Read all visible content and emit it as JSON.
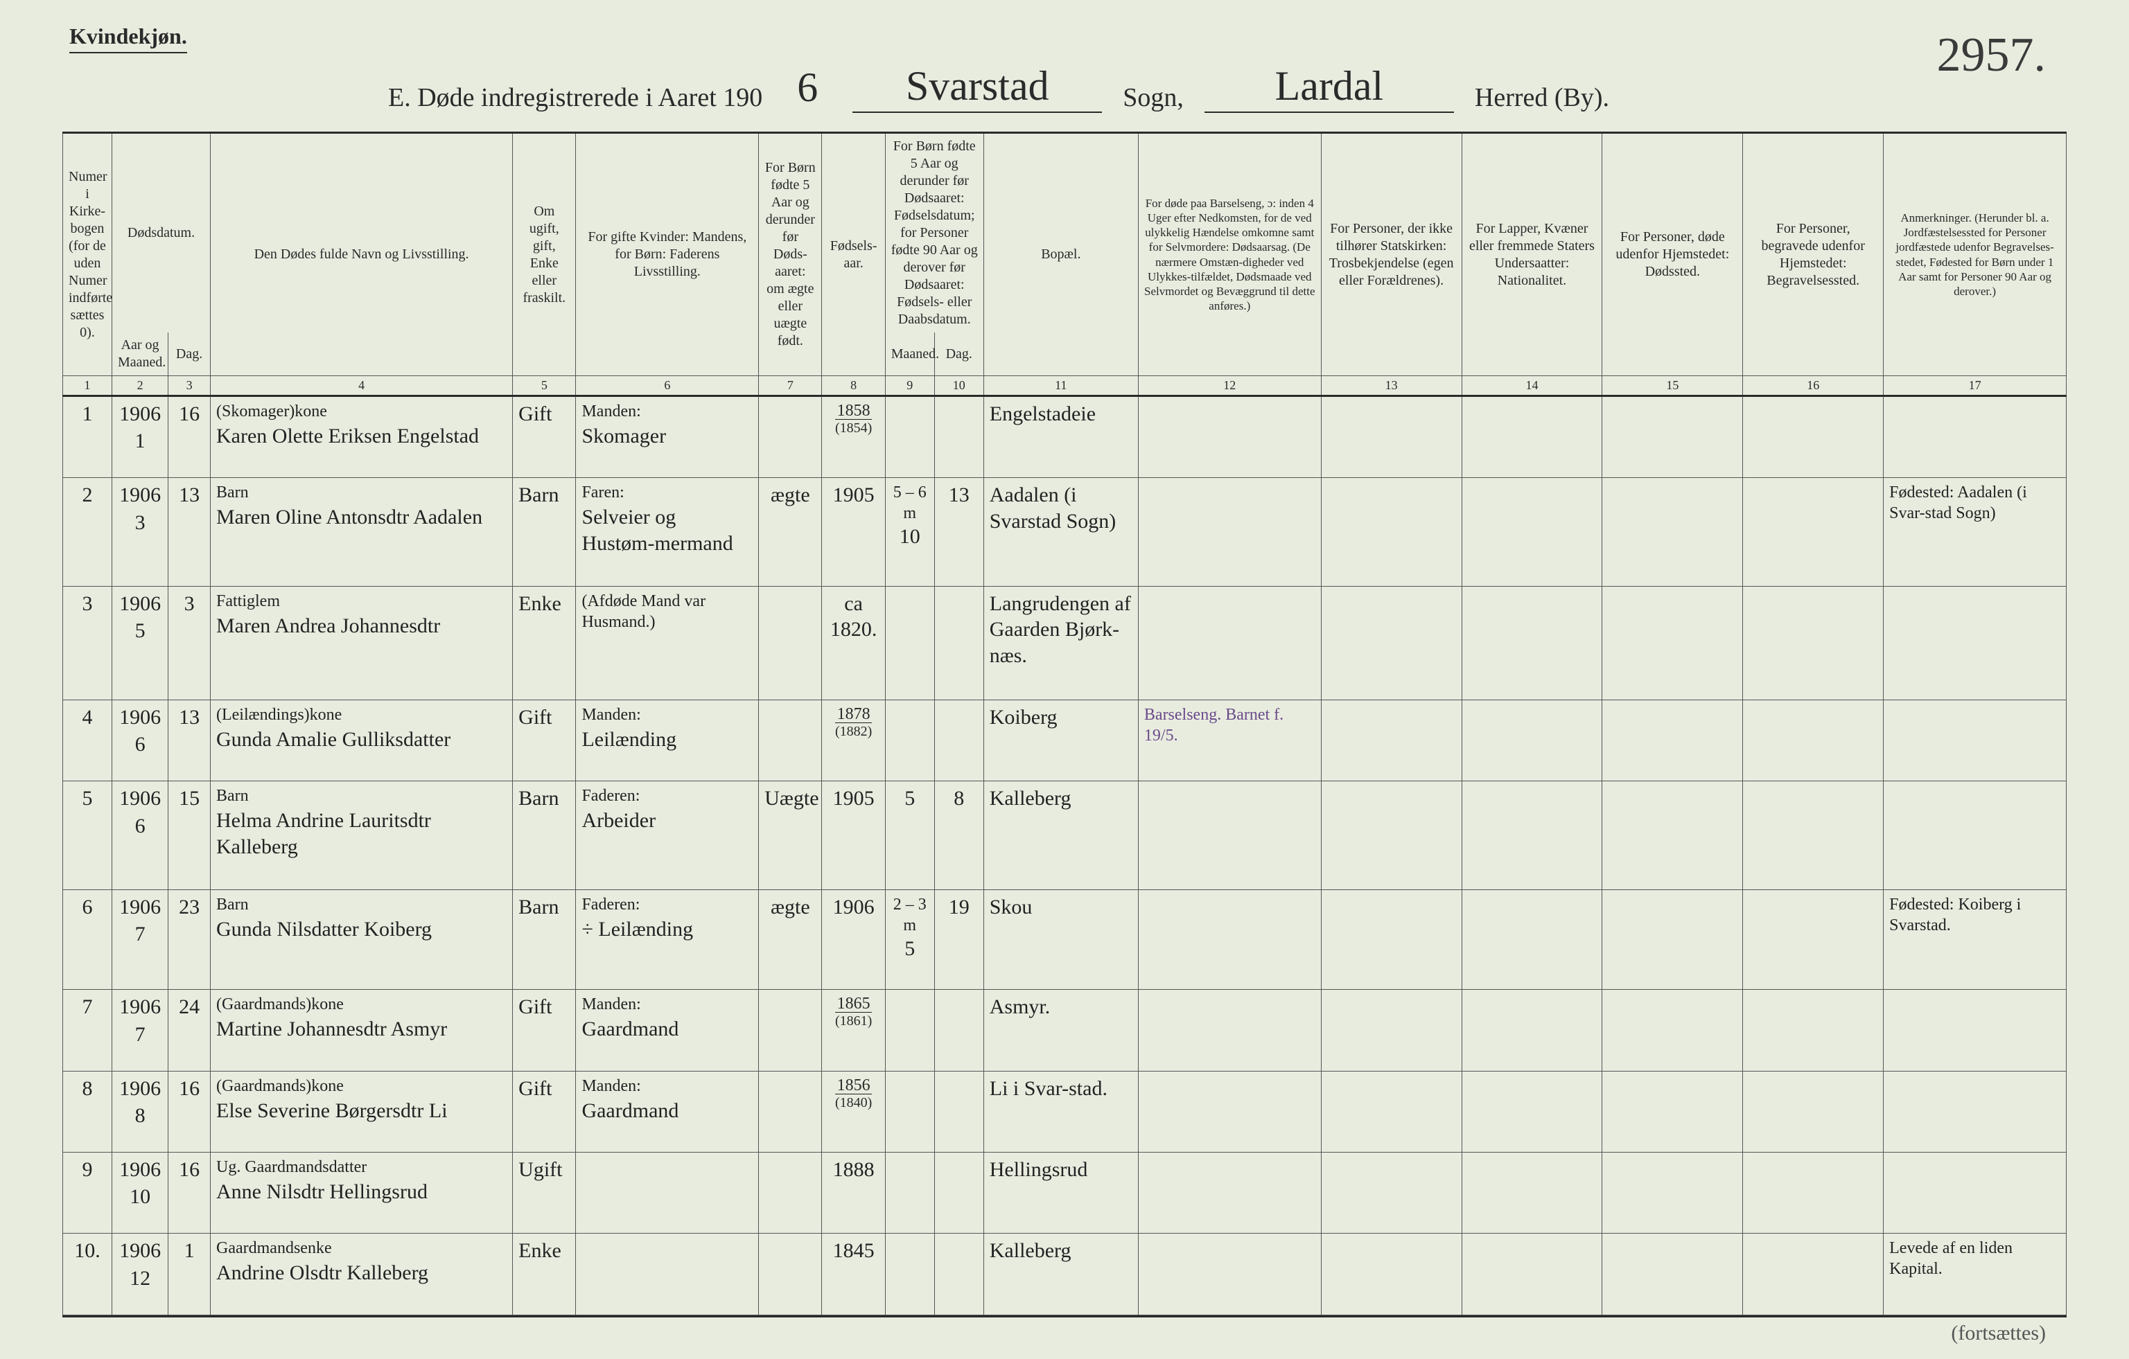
{
  "header": {
    "gender_label": "Kvindekjøn.",
    "page_number_hand": "2957.",
    "title_prefix": "E.  Døde indregistrerede i Aaret 190",
    "year_digit": "6",
    "sogn_hand": "Svarstad",
    "sogn_label": "Sogn,",
    "herred_hand": "Lardal",
    "herred_label": "Herred (By)."
  },
  "columns": {
    "c1": "Numer i Kirke-bogen (for de uden Numer indførte sættes 0).",
    "c2_top": "Dødsdatum.",
    "c2": "Aar og Maaned.",
    "c3": "Dag.",
    "c4": "Den Dødes fulde Navn og Livsstilling.",
    "c5": "Om ugift, gift, Enke eller fraskilt.",
    "c6": "For gifte Kvinder: Mandens, for Børn: Faderens Livsstilling.",
    "c7": "For Børn fødte 5 Aar og derunder før Døds-aaret: om ægte eller uægte født.",
    "c8": "Fødsels-aar.",
    "c9_top": "For Børn fødte 5 Aar og derunder før Dødsaaret: Fødselsdatum; for Personer fødte 90 Aar og derover før Dødsaaret: Fødsels- eller Daabsdatum.",
    "c9": "Maaned.",
    "c10": "Dag.",
    "c11": "Bopæl.",
    "c12": "For døde paa Barselseng, ɔ: inden 4 Uger efter Nedkomsten, for de ved ulykkelig Hændelse omkomne samt for Selvmordere: Dødsaarsag. (De nærmere Omstæn-digheder ved Ulykkes-tilfældet, Dødsmaade ved Selvmordet og Bevæggrund til dette anføres.)",
    "c13": "For Personer, der ikke tilhører Statskirken: Trosbekjendelse (egen eller Forældrenes).",
    "c14": "For Lapper, Kvæner eller fremmede Staters Undersaatter: Nationalitet.",
    "c15": "For Personer, døde udenfor Hjemstedet: Dødssted.",
    "c16": "For Personer, begravede udenfor Hjemstedet: Begravelsessted.",
    "c17": "Anmerkninger. (Herunder bl. a. Jordfæstelsessted for Personer jordfæstede udenfor Begravelses-stedet, Fødested for Børn under 1 Aar samt for Personer 90 Aar og derover.)"
  },
  "colnums": [
    "1",
    "2",
    "3",
    "4",
    "5",
    "6",
    "7",
    "8",
    "9",
    "10",
    "11",
    "12",
    "13",
    "14",
    "15",
    "16",
    "17"
  ],
  "rows": [
    {
      "n": "1",
      "year": "1906",
      "mon": "1",
      "day": "16",
      "name_top": "(Skomager)kone",
      "name": "Karen Olette Eriksen Engelstad",
      "civil": "Gift",
      "rel_top": "Manden:",
      "rel": "Skomager",
      "legit": "",
      "byear": "1858",
      "byear_sub": "(1854)",
      "bm": "",
      "bd": "",
      "place": "Engelstadeie",
      "cause": "",
      "c13": "",
      "c14": "",
      "c15": "",
      "c16": "",
      "note": ""
    },
    {
      "n": "2",
      "year": "1906",
      "mon": "3",
      "day": "13",
      "name_top": "Barn",
      "name": "Maren Oline Antonsdtr Aadalen",
      "civil": "Barn",
      "rel_top": "Faren:",
      "rel": "Selveier og Hustøm-mermand",
      "legit": "ægte",
      "byear": "1905",
      "byear_sub": "",
      "bm": "10",
      "bd": "13",
      "age": "5 – 6 m",
      "place": "Aadalen (i Svarstad Sogn)",
      "cause": "",
      "c13": "",
      "c14": "",
      "c15": "",
      "c16": "",
      "note": "Fødested: Aadalen (i Svar-stad Sogn)"
    },
    {
      "n": "3",
      "year": "1906",
      "mon": "5",
      "day": "3",
      "name_top": "Fattiglem",
      "name": "Maren Andrea Johannesdtr",
      "civil": "Enke",
      "rel_top": "(Afdøde Mand var Husmand.)",
      "rel": "",
      "legit": "",
      "byear": "ca 1820.",
      "byear_sub": "",
      "bm": "",
      "bd": "",
      "place": "Langrudengen af Gaarden Bjørk-næs.",
      "cause": "",
      "c13": "",
      "c14": "",
      "c15": "",
      "c16": "",
      "note": ""
    },
    {
      "n": "4",
      "year": "1906",
      "mon": "6",
      "day": "13",
      "name_top": "(Leilændings)kone",
      "name": "Gunda Amalie Gulliksdatter",
      "civil": "Gift",
      "rel_top": "Manden:",
      "rel": "Leilænding",
      "legit": "",
      "byear": "1878",
      "byear_sub": "(1882)",
      "bm": "",
      "bd": "",
      "place": "Koiberg",
      "cause": "Barselseng. Barnet f. 19/5.",
      "cause_purple": true,
      "c13": "",
      "c14": "",
      "c15": "",
      "c16": "",
      "note": ""
    },
    {
      "n": "5",
      "year": "1906",
      "mon": "6",
      "day": "15",
      "name_top": "Barn",
      "name": "Helma Andrine Lauritsdtr Kalleberg",
      "civil": "Barn",
      "rel_top": "Faderen:",
      "rel": "Arbeider",
      "legit": "Uægte",
      "byear": "1905",
      "byear_sub": "",
      "bm": "5",
      "bd": "8",
      "place": "Kalleberg",
      "cause": "",
      "c13": "",
      "c14": "",
      "c15": "",
      "c16": "",
      "note": ""
    },
    {
      "n": "6",
      "year": "1906",
      "mon": "7",
      "day": "23",
      "name_top": "Barn",
      "name": "Gunda Nilsdatter Koiberg",
      "civil": "Barn",
      "rel_top": "Faderen:",
      "rel": "÷ Leilænding",
      "legit": "ægte",
      "byear": "1906",
      "byear_sub": "",
      "bm": "5",
      "bd": "19",
      "age": "2 – 3 m",
      "place": "Skou",
      "cause": "",
      "c13": "",
      "c14": "",
      "c15": "",
      "c16": "",
      "note": "Fødested: Koiberg i Svarstad."
    },
    {
      "n": "7",
      "year": "1906",
      "mon": "7",
      "day": "24",
      "name_top": "(Gaardmands)kone",
      "name": "Martine Johannesdtr Asmyr",
      "civil": "Gift",
      "rel_top": "Manden:",
      "rel": "Gaardmand",
      "legit": "",
      "byear": "1865",
      "byear_sub": "(1861)",
      "bm": "",
      "bd": "",
      "place": "Asmyr.",
      "cause": "",
      "c13": "",
      "c14": "",
      "c15": "",
      "c16": "",
      "note": ""
    },
    {
      "n": "8",
      "year": "1906",
      "mon": "8",
      "day": "16",
      "name_top": "(Gaardmands)kone",
      "name": "Else Severine Børgersdtr Li",
      "civil": "Gift",
      "rel_top": "Manden:",
      "rel": "Gaardmand",
      "legit": "",
      "byear": "1856",
      "byear_sub": "(1840)",
      "bm": "",
      "bd": "",
      "place": "Li i Svar-stad.",
      "cause": "",
      "c13": "",
      "c14": "",
      "c15": "",
      "c16": "",
      "note": ""
    },
    {
      "n": "9",
      "year": "1906",
      "mon": "10",
      "day": "16",
      "name_top": "Ug. Gaardmandsdatter",
      "name": "Anne Nilsdtr Hellingsrud",
      "civil": "Ugift",
      "rel_top": "",
      "rel": "",
      "legit": "",
      "byear": "1888",
      "byear_sub": "",
      "bm": "",
      "bd": "",
      "place": "Hellingsrud",
      "cause": "",
      "c13": "",
      "c14": "",
      "c15": "",
      "c16": "",
      "note": ""
    },
    {
      "n": "10.",
      "year": "1906",
      "mon": "12",
      "day": "1",
      "name_top": "Gaardmandsenke",
      "name": "Andrine Olsdtr Kalleberg",
      "civil": "Enke",
      "rel_top": "",
      "rel": "",
      "legit": "",
      "byear": "1845",
      "byear_sub": "",
      "bm": "",
      "bd": "",
      "place": "Kalleberg",
      "cause": "",
      "c13": "",
      "c14": "",
      "c15": "",
      "c16": "",
      "note": "Levede af en liden Kapital."
    }
  ],
  "footer_note": "(fortsættes)"
}
